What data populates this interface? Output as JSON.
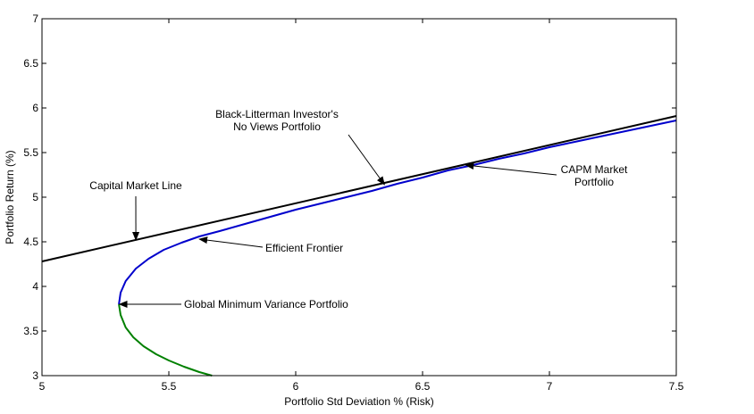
{
  "chart_data": {
    "type": "line",
    "title": "",
    "xlabel": "Portfolio Std Deviation % (Risk)",
    "ylabel": "Portfolio Return (%)",
    "xlim": [
      5,
      7.5
    ],
    "ylim": [
      3,
      7
    ],
    "x_ticks": [
      5,
      5.5,
      6,
      6.5,
      7,
      7.5
    ],
    "x_tick_labels": [
      "5",
      "5.5",
      "6",
      "6.5",
      "7",
      "7.5"
    ],
    "y_ticks": [
      3,
      3.5,
      4,
      4.5,
      5,
      5.5,
      6,
      6.5,
      7
    ],
    "y_tick_labels": [
      "3",
      "3.5",
      "4",
      "4.5",
      "5",
      "5.5",
      "6",
      "6.5",
      "7"
    ],
    "grid": false,
    "legend": "none",
    "series": [
      {
        "color": "#008000",
        "x": [
          5.303,
          5.31,
          5.33,
          5.36,
          5.4,
          5.45,
          5.5,
          5.56,
          5.62,
          5.67
        ],
        "y": [
          3.8,
          3.68,
          3.54,
          3.43,
          3.33,
          3.24,
          3.17,
          3.1,
          3.04,
          3.0
        ]
      },
      {
        "color": "#0000cc",
        "x": [
          5.303,
          5.31,
          5.33,
          5.37,
          5.42,
          5.48,
          5.55,
          5.62,
          5.7,
          5.8,
          5.9,
          6.0,
          6.1,
          6.2,
          6.3,
          6.4,
          6.5,
          6.6,
          6.7,
          6.8,
          6.9,
          7.0,
          7.1,
          7.2,
          7.3,
          7.4,
          7.5
        ],
        "y": [
          3.8,
          3.93,
          4.06,
          4.2,
          4.31,
          4.41,
          4.49,
          4.56,
          4.62,
          4.7,
          4.78,
          4.86,
          4.93,
          5.0,
          5.07,
          5.15,
          5.22,
          5.3,
          5.36,
          5.43,
          5.49,
          5.56,
          5.62,
          5.68,
          5.74,
          5.8,
          5.86
        ]
      },
      {
        "color": "#000000",
        "x": [
          5.0,
          7.5
        ],
        "y": [
          4.28,
          5.91
        ]
      }
    ],
    "annotations": [
      {
        "lines": [
          "Black-Litterman Investor's",
          "No Views Portfolio"
        ],
        "point": [
          6.35,
          5.14
        ],
        "text_pos": [
          6.35,
          5.14
        ]
      },
      {
        "lines": [
          "CAPM Market",
          "Portfolio"
        ],
        "point": [
          6.67,
          5.36
        ],
        "text_pos": [
          6.67,
          5.36
        ]
      },
      {
        "lines": [
          "Capital Market Line"
        ],
        "point": [
          5.37,
          4.52
        ],
        "text_pos": [
          5.37,
          4.52
        ]
      },
      {
        "lines": [
          "Efficient Frontier"
        ],
        "point": [
          5.62,
          4.53
        ],
        "text_pos": [
          5.62,
          4.53
        ]
      },
      {
        "lines": [
          "Global Minimum Variance Portfolio"
        ],
        "point": [
          5.305,
          3.8
        ],
        "text_pos": [
          5.305,
          3.8
        ]
      }
    ]
  }
}
